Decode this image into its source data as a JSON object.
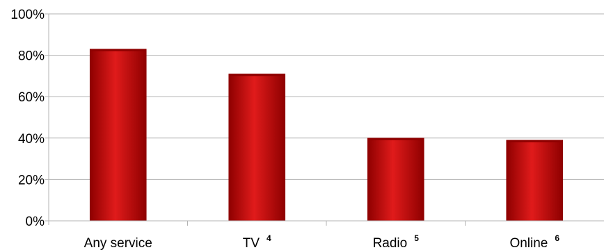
{
  "chart_data": {
    "type": "bar",
    "categories": [
      "Any service",
      "TV",
      "Radio",
      "Online"
    ],
    "category_superscripts": [
      "",
      "4",
      "5",
      "6"
    ],
    "values": [
      83,
      71,
      40,
      39
    ],
    "ylim": [
      0,
      100
    ],
    "yticks": [
      0,
      20,
      40,
      60,
      80,
      100
    ],
    "ytick_labels": [
      "0%",
      "20%",
      "40%",
      "60%",
      "80%",
      "100%"
    ],
    "grid": true,
    "legend": "none",
    "colors": {
      "bar": "#cc0000",
      "bar_highlight": "#e01b1b",
      "bar_shadow": "#8e0000",
      "grid": "#b3b3b3",
      "axis": "#b3b3b3"
    }
  }
}
